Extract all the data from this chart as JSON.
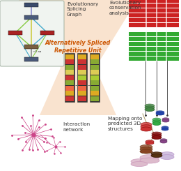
{
  "bg_color": "#ffffff",
  "text_evo_splicing": "Evolutionary\nSplicing\nGraph",
  "text_evo_conservation": "Evolutionary\nconservation\nanalysis",
  "text_alt_spliced": "Alternatively Spliced\nRepetitive Unit",
  "text_interaction": "Interaction\nnetwork",
  "text_mapping": "Mapping onto\npredicted 3D\nstructures",
  "hourglass_color": "#f5c8a0",
  "node_colors": {
    "top": "#3a4a6a",
    "mid_top": "#4a5a7a",
    "left": "#aa2222",
    "right": "#aa2222",
    "mid_bot": "#7a6040",
    "bot": "#4a5a7a"
  },
  "bar_red": "#cc2222",
  "bar_green": "#33aa33",
  "network_color": "#cc4488"
}
